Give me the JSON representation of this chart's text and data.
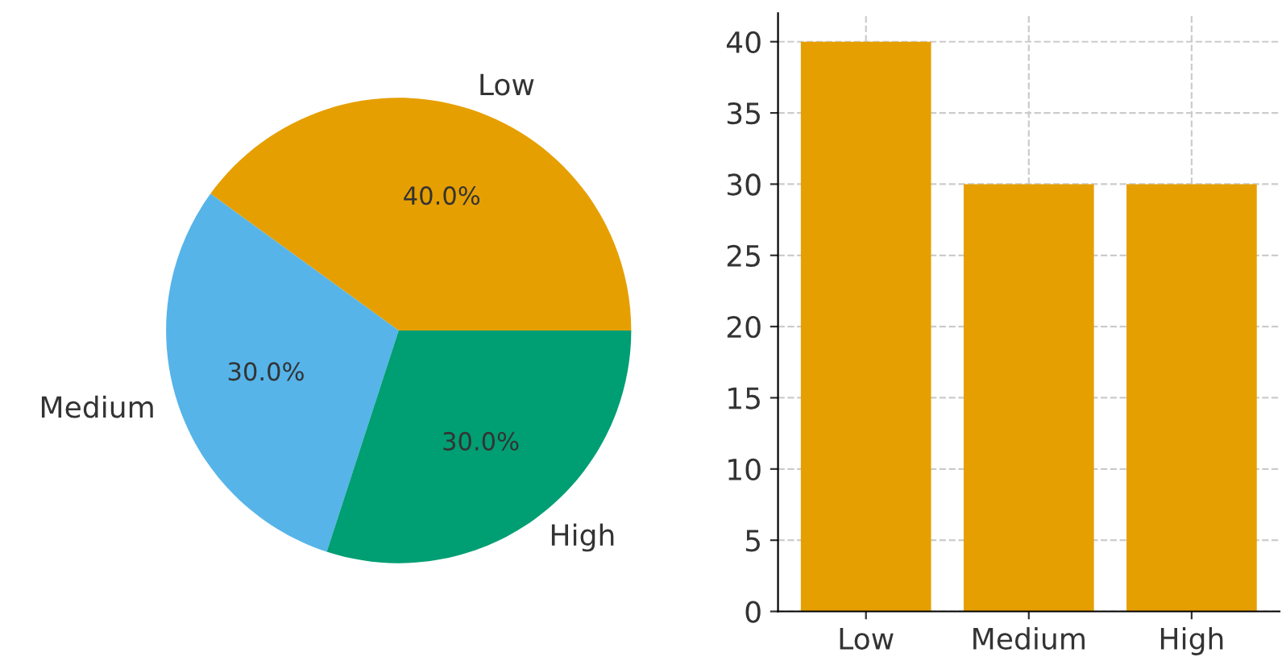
{
  "chart_data": [
    {
      "type": "pie",
      "categories": [
        "Low",
        "Medium",
        "High"
      ],
      "values": [
        40,
        30,
        30
      ],
      "colors": [
        "#e69f00",
        "#56b4e9",
        "#009e73"
      ],
      "value_labels": [
        "40.0%",
        "30.0%",
        "30.0%"
      ]
    },
    {
      "type": "bar",
      "categories": [
        "Low",
        "Medium",
        "High"
      ],
      "values": [
        40,
        30,
        30
      ],
      "color": "#e69f00",
      "ylim": [
        0,
        42
      ],
      "yticks": [
        0,
        5,
        10,
        15,
        20,
        25,
        30,
        35,
        40
      ],
      "grid": true
    }
  ]
}
